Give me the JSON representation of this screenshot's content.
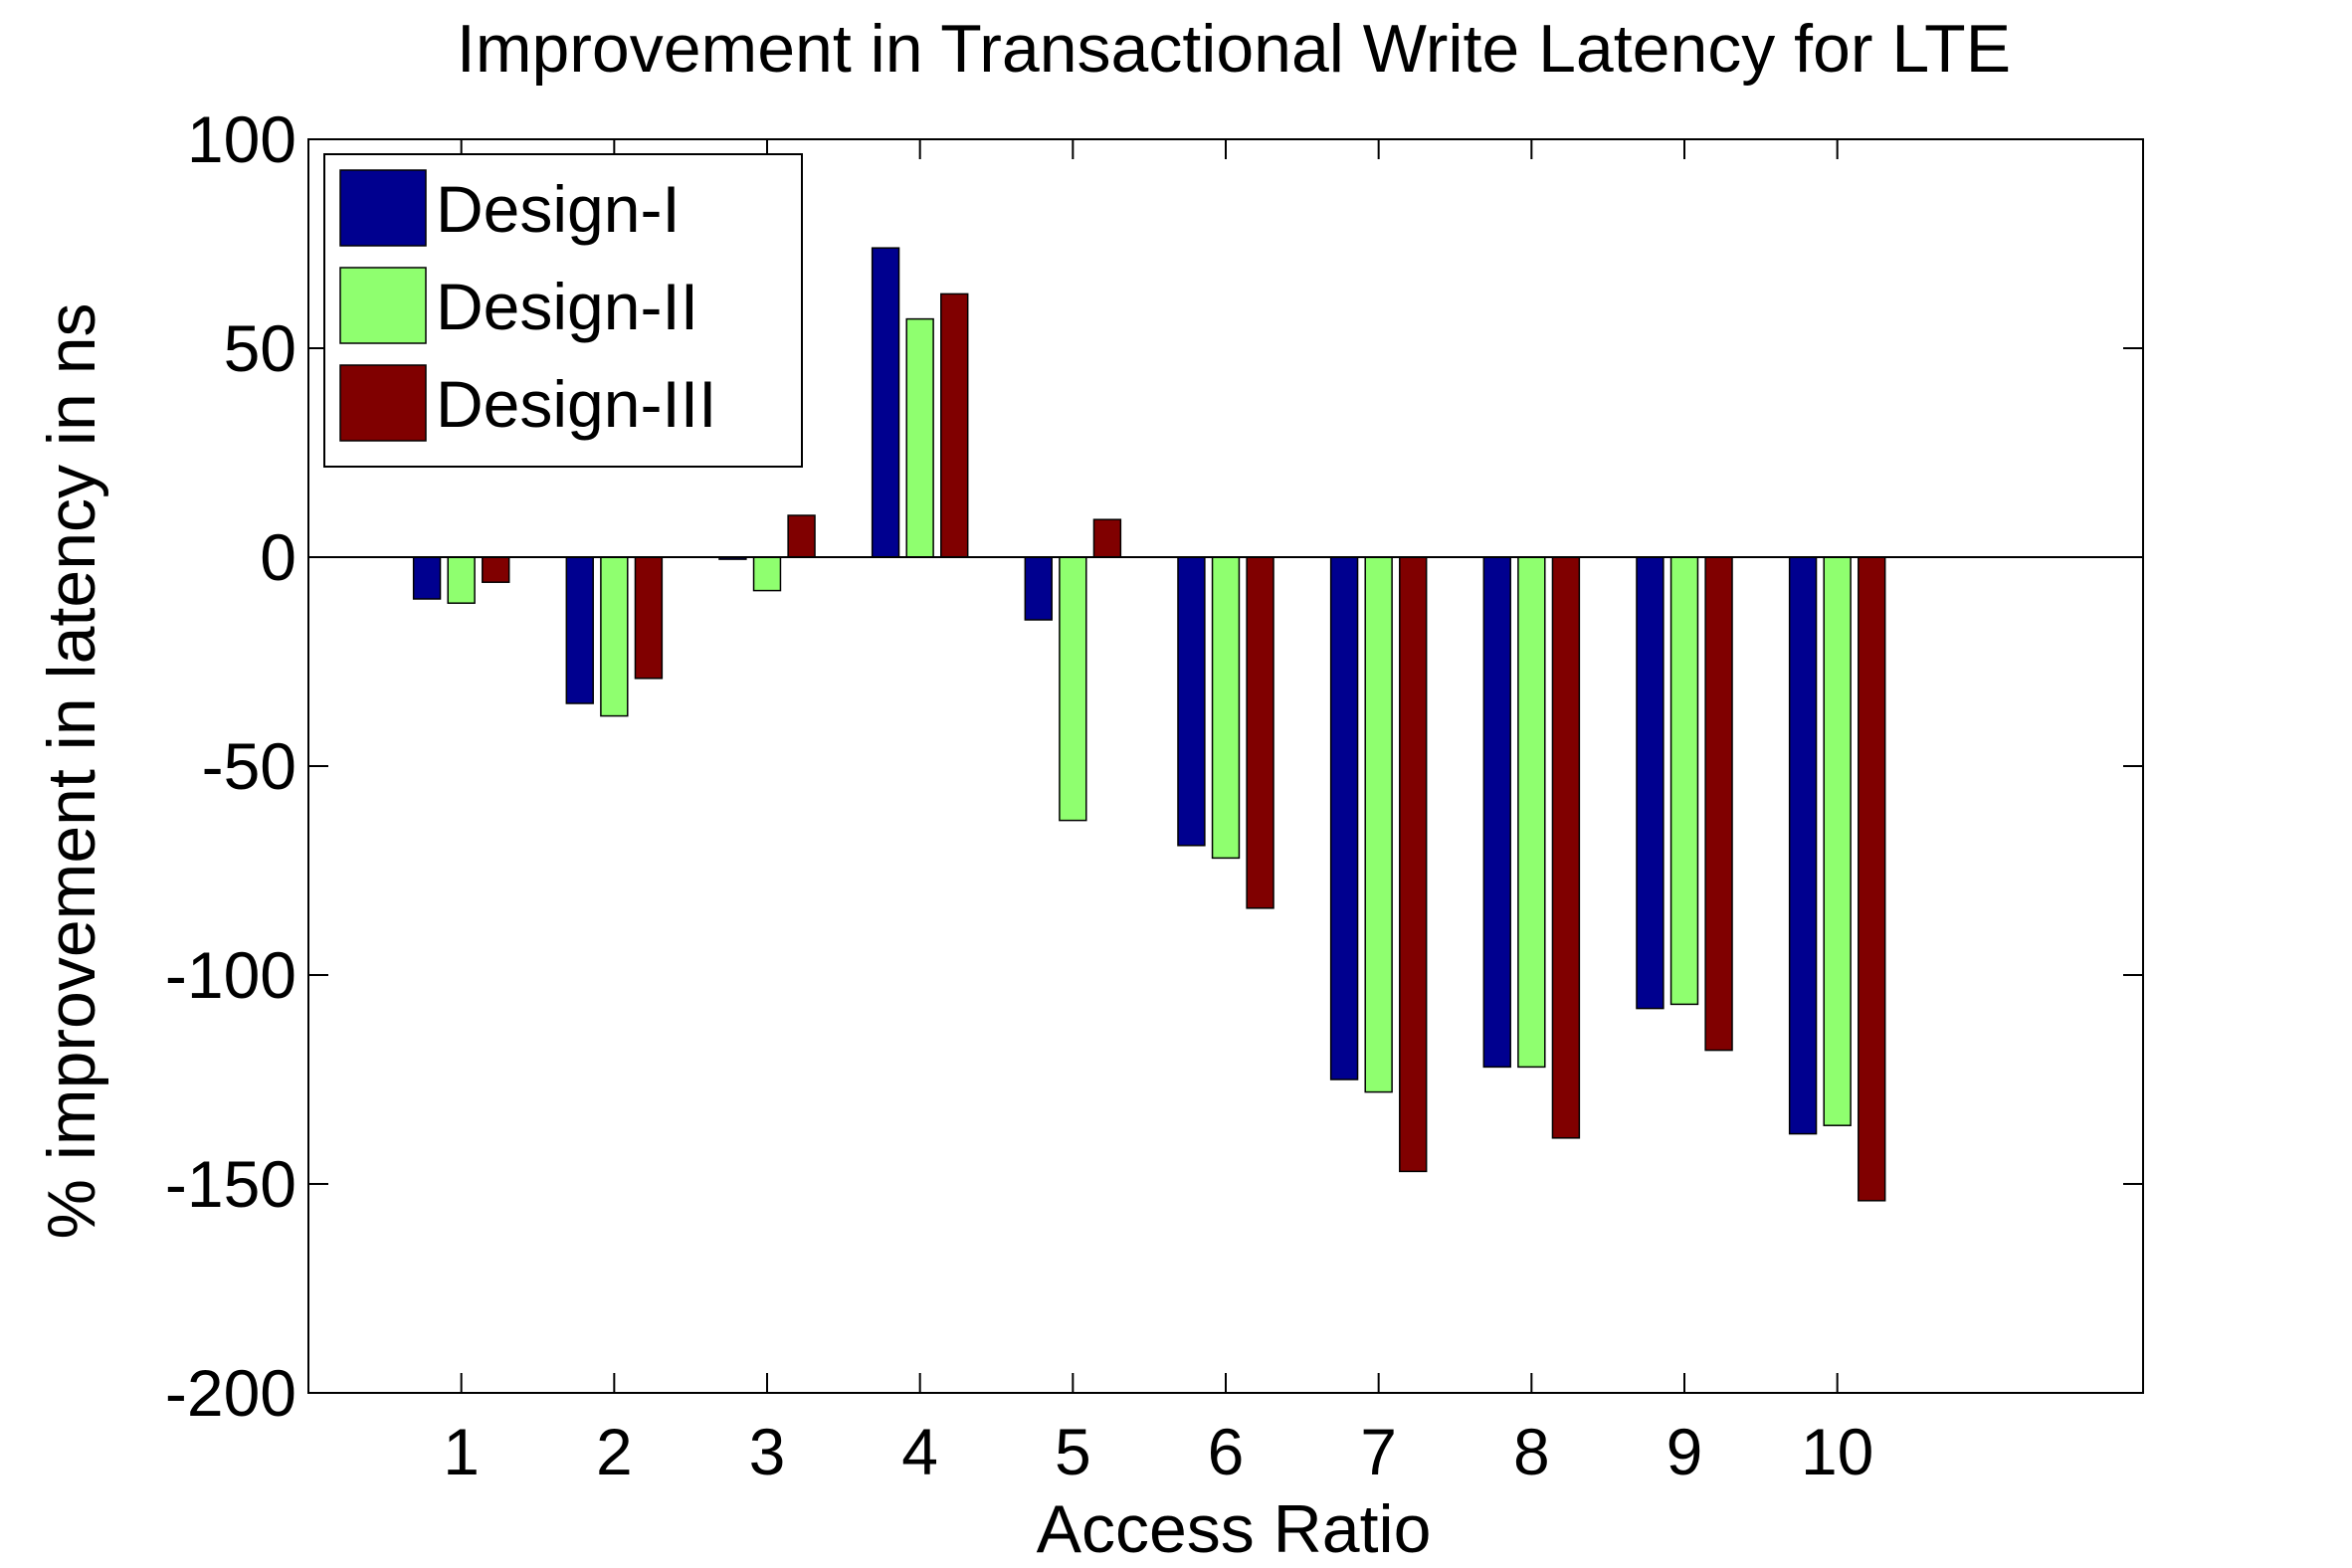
{
  "chart_data": {
    "type": "bar",
    "title": "Improvement in Transactional Write Latency for LTE",
    "xlabel": "Access Ratio",
    "ylabel": "% improvement in latency in ns",
    "categories": [
      "1",
      "2",
      "3",
      "4",
      "5",
      "6",
      "7",
      "8",
      "9",
      "10"
    ],
    "xlim": [
      0,
      12
    ],
    "ylim": [
      -200,
      100
    ],
    "yticks": [
      "100",
      "50",
      "0",
      "-50",
      "-100",
      "-150",
      "-200"
    ],
    "grid": false,
    "legend_position": "top-left",
    "series": [
      {
        "name": "Design-I",
        "color": "#00008f",
        "values": [
          -10,
          -35,
          -0.5,
          74,
          -15,
          -69,
          -125,
          -122,
          -108,
          -138
        ]
      },
      {
        "name": "Design-II",
        "color": "#8fff6f",
        "values": [
          -11,
          -38,
          -8,
          57,
          -63,
          -72,
          -128,
          -122,
          -107,
          -136
        ]
      },
      {
        "name": "Design-III",
        "color": "#800000",
        "values": [
          -6,
          -29,
          10,
          63,
          9,
          -84,
          -147,
          -139,
          -118,
          -154
        ]
      }
    ]
  }
}
